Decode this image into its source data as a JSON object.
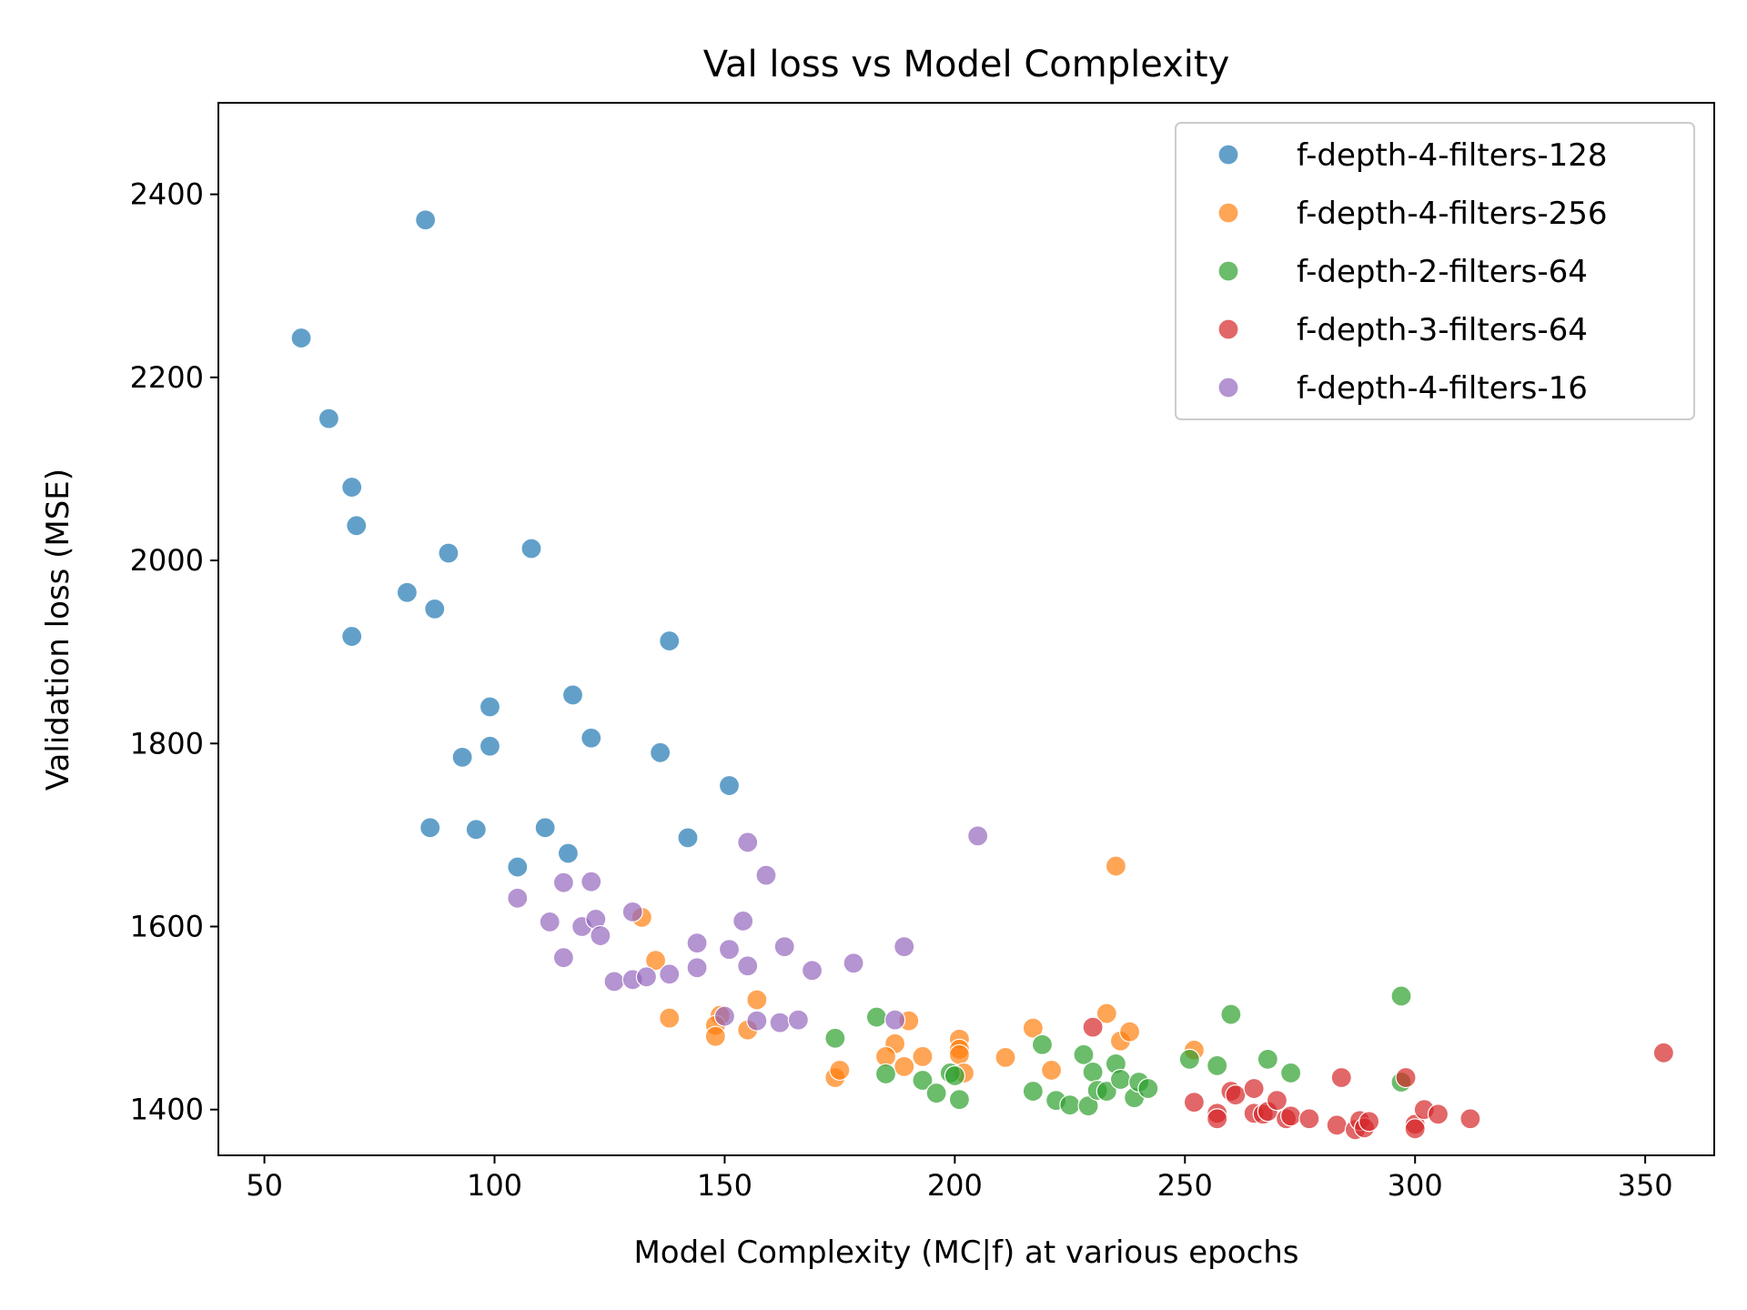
{
  "chart_data": {
    "type": "scatter",
    "title": "Val loss vs Model Complexity",
    "xlabel": "Model Complexity (MC|f) at various epochs",
    "ylabel": "Validation loss (MSE)",
    "xlim": [
      40,
      365
    ],
    "ylim": [
      1350,
      2500
    ],
    "xticks": [
      50,
      100,
      150,
      200,
      250,
      300,
      350
    ],
    "yticks": [
      1400,
      1600,
      1800,
      2000,
      2200,
      2400
    ],
    "grid": false,
    "legend_position": "top-right",
    "series": [
      {
        "name": "f-depth-4-filters-128",
        "color": "#1f77b4",
        "x": [
          85,
          58,
          64,
          69,
          70,
          90,
          108,
          81,
          87,
          69,
          138,
          99,
          117,
          121,
          99,
          93,
          136,
          151,
          86,
          96,
          111,
          142,
          105,
          116
        ],
        "y": [
          2372,
          2243,
          2155,
          2080,
          2038,
          2008,
          2013,
          1965,
          1947,
          1917,
          1912,
          1840,
          1853,
          1806,
          1797,
          1785,
          1790,
          1754,
          1708,
          1706,
          1708,
          1697,
          1665,
          1680
        ]
      },
      {
        "name": "f-depth-4-filters-256",
        "color": "#ff7f0e",
        "x": [
          235,
          132,
          135,
          157,
          138,
          149,
          148,
          155,
          148,
          190,
          187,
          185,
          189,
          193,
          174,
          175,
          201,
          201,
          201,
          202,
          211,
          217,
          221,
          233,
          236,
          238,
          252
        ],
        "y": [
          1666,
          1610,
          1563,
          1520,
          1500,
          1503,
          1492,
          1487,
          1480,
          1497,
          1472,
          1458,
          1447,
          1458,
          1435,
          1443,
          1477,
          1466,
          1460,
          1440,
          1457,
          1489,
          1443,
          1505,
          1475,
          1485,
          1465
        ]
      },
      {
        "name": "f-depth-2-filters-64",
        "color": "#2ca02c",
        "x": [
          297,
          260,
          183,
          174,
          185,
          193,
          196,
          199,
          201,
          200,
          219,
          217,
          222,
          225,
          228,
          229,
          230,
          231,
          233,
          235,
          236,
          239,
          240,
          242,
          251,
          257,
          268,
          273,
          297
        ],
        "y": [
          1524,
          1504,
          1501,
          1478,
          1439,
          1432,
          1418,
          1440,
          1411,
          1437,
          1471,
          1420,
          1410,
          1405,
          1460,
          1404,
          1441,
          1421,
          1420,
          1450,
          1433,
          1413,
          1430,
          1423,
          1455,
          1448,
          1455,
          1440,
          1430
        ]
      },
      {
        "name": "f-depth-3-filters-64",
        "color": "#d62728",
        "x": [
          354,
          230,
          252,
          257,
          257,
          260,
          261,
          265,
          265,
          267,
          268,
          270,
          272,
          273,
          277,
          283,
          284,
          287,
          288,
          289,
          290,
          298,
          300,
          300,
          302,
          305,
          312
        ],
        "y": [
          1462,
          1490,
          1408,
          1396,
          1390,
          1420,
          1416,
          1396,
          1423,
          1395,
          1398,
          1410,
          1390,
          1393,
          1390,
          1383,
          1435,
          1378,
          1388,
          1380,
          1387,
          1435,
          1384,
          1379,
          1400,
          1395,
          1390
        ]
      },
      {
        "name": "f-depth-4-filters-16",
        "color": "#9467bd",
        "x": [
          205,
          155,
          159,
          105,
          115,
          121,
          130,
          112,
          119,
          122,
          123,
          115,
          126,
          130,
          133,
          138,
          144,
          144,
          151,
          154,
          155,
          163,
          169,
          178,
          189,
          150,
          157,
          162,
          166,
          187
        ],
        "y": [
          1699,
          1692,
          1656,
          1631,
          1648,
          1649,
          1616,
          1605,
          1600,
          1608,
          1590,
          1566,
          1540,
          1542,
          1545,
          1548,
          1582,
          1555,
          1575,
          1606,
          1557,
          1578,
          1552,
          1560,
          1578,
          1502,
          1497,
          1495,
          1498,
          1498
        ]
      }
    ]
  }
}
